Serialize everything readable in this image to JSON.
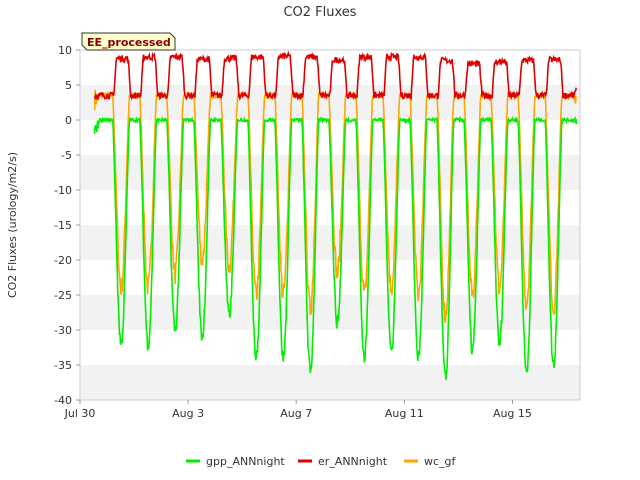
{
  "chart_data": {
    "type": "line",
    "title": "CO2 Fluxes",
    "xlabel": "",
    "ylabel": "CO2 Fluxes (urology/m2/s)",
    "ylim": [
      -40,
      10
    ],
    "yticks": [
      10,
      5,
      0,
      -5,
      -10,
      -15,
      -20,
      -25,
      -30,
      -35,
      -40
    ],
    "xlim": [
      "2023-07-30",
      "2023-08-17T12:00"
    ],
    "xticks": [
      {
        "date": "2023-07-30",
        "label": "Jul 30"
      },
      {
        "date": "2023-08-03",
        "label": "Aug 3"
      },
      {
        "date": "2023-08-07",
        "label": "Aug 7"
      },
      {
        "date": "2023-08-11",
        "label": "Aug 11"
      },
      {
        "date": "2023-08-15",
        "label": "Aug 15"
      }
    ],
    "grid": "horizontal alternating bands",
    "legend_position": "bottom",
    "badge": "EE_processed",
    "days": [
      "2023-07-30",
      "2023-07-31",
      "2023-08-01",
      "2023-08-02",
      "2023-08-03",
      "2023-08-04",
      "2023-08-05",
      "2023-08-06",
      "2023-08-07",
      "2023-08-08",
      "2023-08-09",
      "2023-08-10",
      "2023-08-11",
      "2023-08-12",
      "2023-08-13",
      "2023-08-14",
      "2023-08-15",
      "2023-08-16",
      "2023-08-17"
    ],
    "series": [
      {
        "name": "gpp_ANNnight",
        "color": "#00ee00",
        "night_level": 0,
        "daily_min": [
          -1,
          -32,
          -32,
          -30,
          -31,
          -28,
          -34,
          -34,
          -36,
          -29,
          -34,
          -33,
          -34,
          -37,
          -33,
          -32,
          -36,
          -35,
          0
        ]
      },
      {
        "name": "er_ANNnight",
        "color": "#dd0000",
        "day_level": 8.5,
        "night_level": 3.5,
        "daily_max": [
          3.5,
          8.8,
          9.0,
          9.0,
          8.7,
          8.8,
          9.0,
          9.1,
          9.0,
          8.6,
          9.0,
          9.0,
          9.0,
          8.5,
          8.0,
          8.3,
          8.5,
          8.6,
          4.0
        ]
      },
      {
        "name": "wc_gf",
        "color": "#ffa500",
        "night_level": 3.5,
        "daily_min": [
          3,
          -24,
          -24,
          -22,
          -20,
          -21,
          -25,
          -25,
          -27,
          -22,
          -25,
          -24,
          -25,
          -28,
          -25,
          -24,
          -26,
          -27,
          3
        ]
      }
    ]
  }
}
